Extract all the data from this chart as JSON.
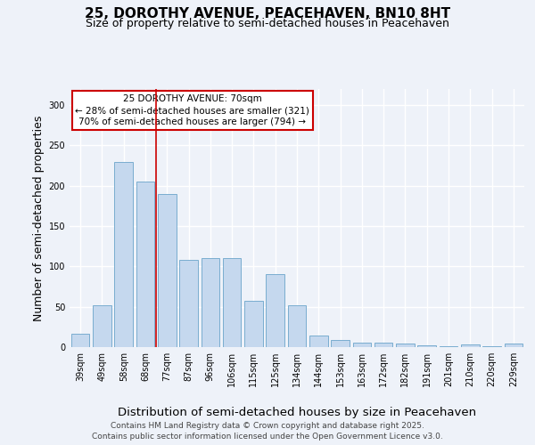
{
  "title": "25, DOROTHY AVENUE, PEACEHAVEN, BN10 8HT",
  "subtitle": "Size of property relative to semi-detached houses in Peacehaven",
  "xlabel": "Distribution of semi-detached houses by size in Peacehaven",
  "ylabel": "Number of semi-detached properties",
  "categories": [
    "39sqm",
    "49sqm",
    "58sqm",
    "68sqm",
    "77sqm",
    "87sqm",
    "96sqm",
    "106sqm",
    "115sqm",
    "125sqm",
    "134sqm",
    "144sqm",
    "153sqm",
    "163sqm",
    "172sqm",
    "182sqm",
    "191sqm",
    "201sqm",
    "210sqm",
    "220sqm",
    "229sqm"
  ],
  "values": [
    17,
    52,
    230,
    205,
    190,
    108,
    110,
    110,
    57,
    90,
    52,
    14,
    9,
    6,
    5,
    4,
    2,
    1,
    3,
    1,
    4
  ],
  "bar_color": "#c5d8ee",
  "bar_edge_color": "#7aadcf",
  "property_bin_index": 3,
  "marker_line_color": "#cc0000",
  "annotation_text": "25 DOROTHY AVENUE: 70sqm\n← 28% of semi-detached houses are smaller (321)\n70% of semi-detached houses are larger (794) →",
  "annotation_box_color": "#ffffff",
  "annotation_box_edge_color": "#cc0000",
  "footer_text": "Contains HM Land Registry data © Crown copyright and database right 2025.\nContains public sector information licensed under the Open Government Licence v3.0.",
  "ylim": [
    0,
    320
  ],
  "yticks": [
    0,
    50,
    100,
    150,
    200,
    250,
    300
  ],
  "background_color": "#eef2f9",
  "plot_background_color": "#eef2f9",
  "grid_color": "#ffffff",
  "title_fontsize": 11,
  "subtitle_fontsize": 9,
  "axis_label_fontsize": 9,
  "tick_fontsize": 7,
  "footer_fontsize": 6.5,
  "annotation_fontsize": 7.5
}
